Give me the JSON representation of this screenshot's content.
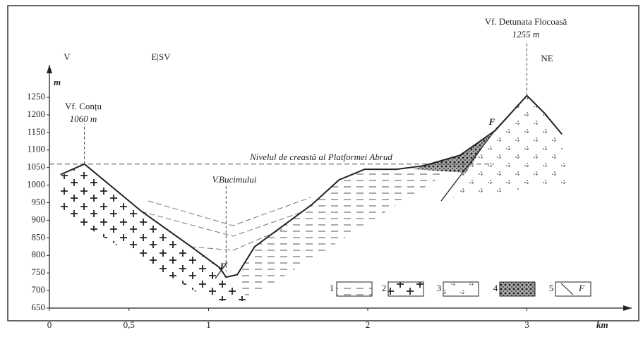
{
  "chart_data": {
    "type": "line",
    "x_label": "km",
    "y_label": "m",
    "xlim": [
      0,
      3.6
    ],
    "ylim": [
      650,
      1330
    ],
    "xticks": [
      0,
      {
        "value": 0.5,
        "label": "0,5"
      },
      1,
      2,
      3
    ],
    "yticks": [
      650,
      700,
      750,
      800,
      850,
      900,
      950,
      1000,
      1050,
      1100,
      1150,
      1200,
      1250
    ],
    "series": [
      {
        "color": "#222",
        "x": [
          0.07,
          0.22,
          0.58,
          0.89,
          1.07,
          1.11,
          1.18,
          1.29,
          1.47,
          1.65,
          1.82,
          1.98,
          2.18,
          2.35,
          2.58,
          2.8,
          3.0,
          3.11,
          3.22
        ],
        "values": [
          1030,
          1060,
          925,
          825,
          765,
          738,
          745,
          825,
          885,
          945,
          1015,
          1045,
          1045,
          1055,
          1085,
          1155,
          1255,
          1205,
          1145
        ]
      }
    ],
    "ridge_level": 1060,
    "annotations": [
      "V",
      "E|SV",
      "Vf. Detunata Flocoasă",
      "1255 m",
      "NE",
      "Vf. Conțu",
      "1060 m",
      "Nivelul de creastă al Platformei Abrud",
      "V.Bucimului",
      "F",
      "F"
    ],
    "legend": [
      "1",
      "2",
      "3",
      "4",
      "5",
      "F"
    ]
  }
}
